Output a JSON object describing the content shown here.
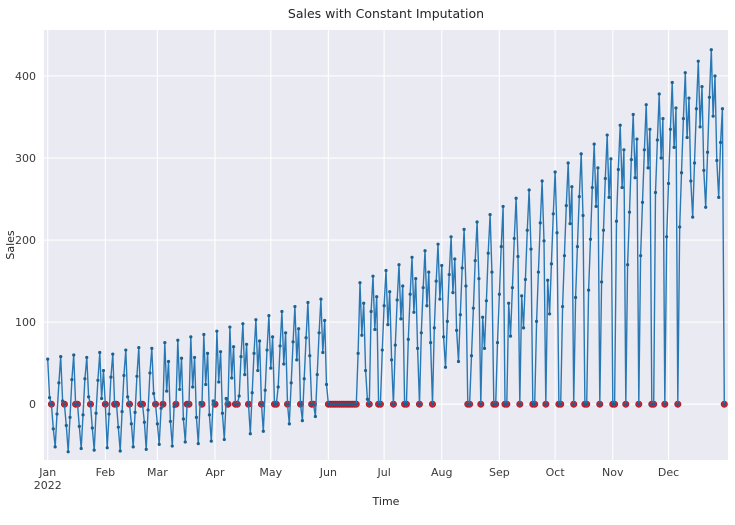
{
  "figure": {
    "title": "Sales with Constant Imputation",
    "colors": {
      "figure_bg": "#ffffff",
      "plot_bg": "#eaeaf2",
      "grid": "#ffffff",
      "line": "#2878b5",
      "marker": "#1b618f",
      "imputed_dot": "#cf2233",
      "imputed_dot_edge": "#a91a29",
      "title_text": "#262626",
      "tick_text": "#3a3a3a"
    }
  },
  "chart_data": {
    "type": "line",
    "title": "Sales with Constant Imputation",
    "xlabel": "Time",
    "ylabel": "Sales",
    "x_unit": "daily, day index 0 = Jan 1 2022",
    "x_tick_labels": [
      "Jan",
      "Feb",
      "Mar",
      "Apr",
      "May",
      "Jun",
      "Jul",
      "Aug",
      "Sep",
      "Oct",
      "Nov",
      "Dec"
    ],
    "x_tick_day_offsets": [
      0,
      31,
      59,
      90,
      120,
      151,
      181,
      212,
      243,
      273,
      304,
      334
    ],
    "first_tick_year": "2022",
    "yticks": [
      0,
      100,
      200,
      300,
      400
    ],
    "ylim": [
      -68,
      456
    ],
    "xlim_days": [
      -2,
      366
    ],
    "grid": true,
    "legend": false,
    "imputed_value": 0,
    "values": [
      55,
      8,
      0,
      -30,
      -52,
      -12,
      26,
      58,
      4,
      0,
      -26,
      -58,
      -16,
      30,
      60,
      0,
      0,
      -27,
      -54,
      -13,
      31,
      57,
      9,
      0,
      -29,
      -56,
      -11,
      29,
      63,
      7,
      41,
      0,
      -53,
      -12,
      33,
      61,
      0,
      0,
      -28,
      -57,
      -9,
      35,
      66,
      9,
      0,
      -24,
      -52,
      -10,
      34,
      69,
      0,
      0,
      -22,
      -55,
      -7,
      38,
      68,
      13,
      0,
      -24,
      -49,
      -5,
      0,
      75,
      16,
      52,
      -21,
      -51,
      -3,
      0,
      78,
      18,
      56,
      -18,
      -46,
      0,
      0,
      82,
      21,
      57,
      -16,
      -48,
      2,
      0,
      85,
      24,
      62,
      -13,
      -45,
      4,
      0,
      89,
      27,
      64,
      -11,
      -43,
      7,
      0,
      94,
      32,
      70,
      0,
      0,
      10,
      58,
      98,
      36,
      73,
      0,
      -36,
      14,
      62,
      103,
      41,
      77,
      0,
      -33,
      17,
      66,
      108,
      44,
      82,
      0,
      0,
      21,
      71,
      113,
      49,
      87,
      0,
      -24,
      26,
      76,
      119,
      54,
      92,
      0,
      -20,
      31,
      81,
      124,
      59,
      0,
      0,
      -15,
      36,
      87,
      128,
      63,
      102,
      24,
      0,
      0,
      0,
      0,
      0,
      0,
      0,
      0,
      0,
      0,
      0,
      0,
      0,
      0,
      0,
      0,
      62,
      148,
      84,
      123,
      41,
      6,
      0,
      113,
      156,
      91,
      131,
      0,
      0,
      66,
      120,
      163,
      97,
      137,
      54,
      0,
      72,
      127,
      170,
      104,
      144,
      0,
      0,
      79,
      134,
      179,
      112,
      153,
      68,
      0,
      87,
      142,
      187,
      120,
      161,
      75,
      0,
      93,
      150,
      195,
      128,
      169,
      82,
      45,
      101,
      158,
      204,
      136,
      177,
      90,
      52,
      109,
      166,
      213,
      144,
      0,
      0,
      59,
      117,
      175,
      222,
      153,
      0,
      106,
      68,
      126,
      184,
      231,
      161,
      0,
      0,
      75,
      134,
      192,
      241,
      0,
      0,
      123,
      83,
      142,
      202,
      251,
      180,
      0,
      132,
      93,
      152,
      212,
      261,
      189,
      0,
      0,
      101,
      161,
      221,
      272,
      199,
      0,
      151,
      110,
      171,
      232,
      283,
      209,
      0,
      0,
      119,
      181,
      242,
      294,
      220,
      265,
      0,
      130,
      192,
      253,
      305,
      230,
      0,
      0,
      139,
      201,
      264,
      317,
      241,
      288,
      0,
      149,
      212,
      275,
      328,
      252,
      299,
      0,
      0,
      223,
      286,
      340,
      264,
      310,
      0,
      170,
      234,
      298,
      353,
      276,
      323,
      0,
      181,
      246,
      310,
      365,
      288,
      335,
      0,
      0,
      258,
      322,
      378,
      300,
      348,
      0,
      204,
      269,
      335,
      392,
      313,
      361,
      0,
      216,
      282,
      348,
      404,
      325,
      373,
      272,
      228,
      294,
      360,
      418,
      338,
      387,
      285,
      240,
      307,
      374,
      432,
      351,
      400,
      297,
      252,
      319,
      360,
      0
    ]
  }
}
